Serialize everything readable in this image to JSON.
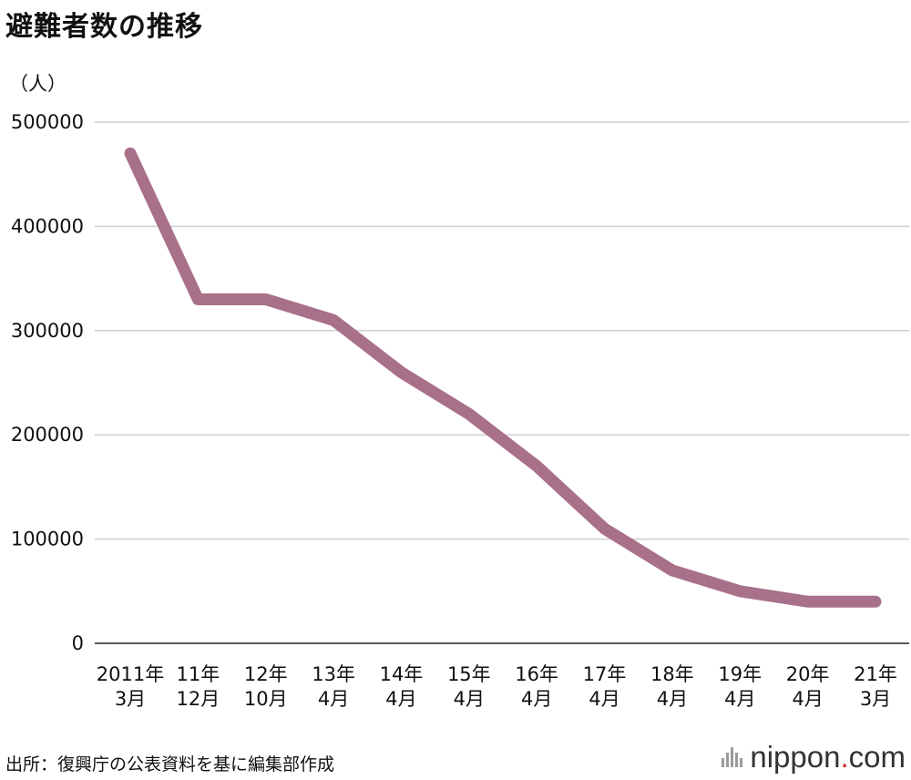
{
  "title": "避難者数の推移",
  "unit_label": "（人）",
  "source": "出所：復興庁の公表資料を基に編集部作成",
  "logo": {
    "name": "nippon",
    "dot": ".",
    "suffix": "com",
    "dot_color": "#d32a2a"
  },
  "chart_data": {
    "type": "line",
    "title": "避難者数の推移",
    "ylabel": "（人）",
    "xlabel": "",
    "ylim": [
      0,
      500000
    ],
    "yticks": [
      0,
      100000,
      200000,
      300000,
      400000,
      500000
    ],
    "grid": true,
    "categories": [
      [
        "2011年",
        "3月"
      ],
      [
        "11年",
        "12月"
      ],
      [
        "12年",
        "10月"
      ],
      [
        "13年",
        "4月"
      ],
      [
        "14年",
        "4月"
      ],
      [
        "15年",
        "4月"
      ],
      [
        "16年",
        "4月"
      ],
      [
        "17年",
        "4月"
      ],
      [
        "18年",
        "4月"
      ],
      [
        "19年",
        "4月"
      ],
      [
        "20年",
        "4月"
      ],
      [
        "21年",
        "3月"
      ]
    ],
    "series": [
      {
        "color": "#a9708a",
        "values": [
          470000,
          330000,
          330000,
          310000,
          260000,
          220000,
          170000,
          110000,
          70000,
          50000,
          40000,
          40000
        ]
      }
    ]
  }
}
